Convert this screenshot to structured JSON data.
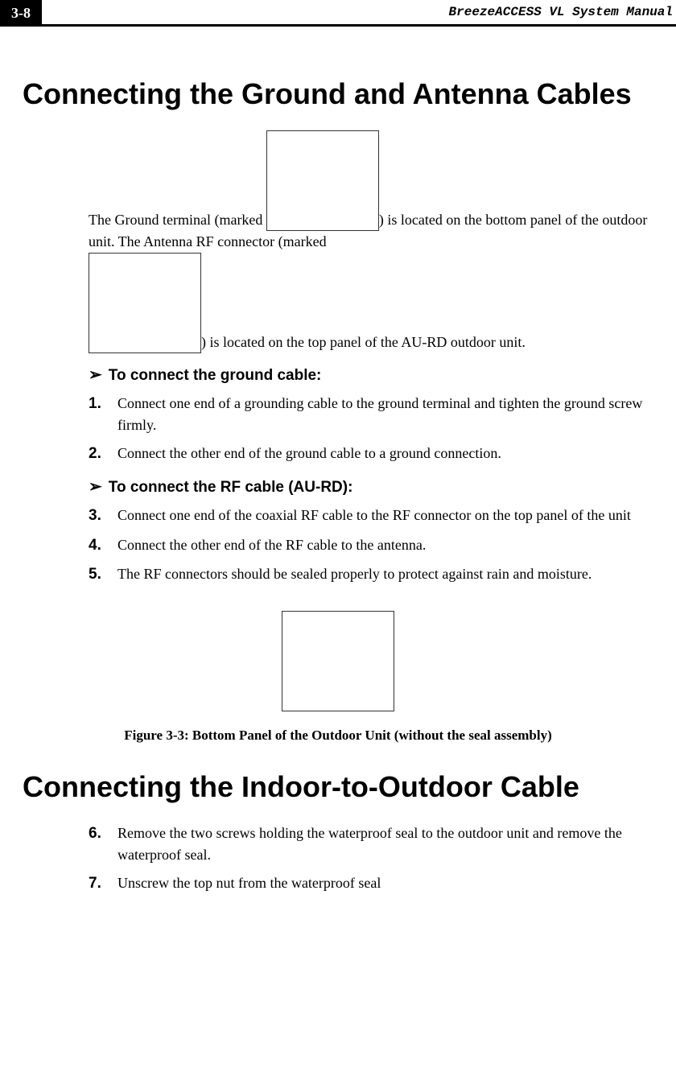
{
  "header": {
    "pageNumber": "3-8",
    "docTitle": "BreezeACCESS VL System Manual"
  },
  "section1": {
    "heading": "Connecting the Ground and Antenna Cables",
    "intro_part1": "The Ground terminal (marked ",
    "intro_part2": ") is located on the bottom panel of the outdoor unit. The Antenna RF connector (marked ",
    "intro_part3": ") is located on the top panel of the AU-RD outdoor unit."
  },
  "procedure1": {
    "heading": "To connect the ground cable:",
    "steps": [
      {
        "num": "1.",
        "text": "Connect one end of a grounding cable to the ground terminal and tighten the ground screw firmly."
      },
      {
        "num": "2.",
        "text": "Connect the other end of the ground cable to a ground connection."
      }
    ]
  },
  "procedure2": {
    "heading": "To connect the RF cable (AU-RD):",
    "steps": [
      {
        "num": "3.",
        "text": "Connect one end of the coaxial RF cable to the RF connector on the top panel of the unit"
      },
      {
        "num": "4.",
        "text": "Connect the other end of the RF cable to the antenna."
      },
      {
        "num": "5.",
        "text": "The RF connectors should be sealed properly to protect against rain and moisture."
      }
    ]
  },
  "figure": {
    "caption": "Figure 3-3: Bottom Panel of the Outdoor Unit (without the seal assembly)"
  },
  "section2": {
    "heading": "Connecting the Indoor-to-Outdoor Cable",
    "steps": [
      {
        "num": "6.",
        "text": "Remove the two screws holding the waterproof seal to the outdoor unit and remove the waterproof seal."
      },
      {
        "num": "7.",
        "text": "Unscrew the top nut from the waterproof seal"
      }
    ]
  },
  "arrow": "➢"
}
